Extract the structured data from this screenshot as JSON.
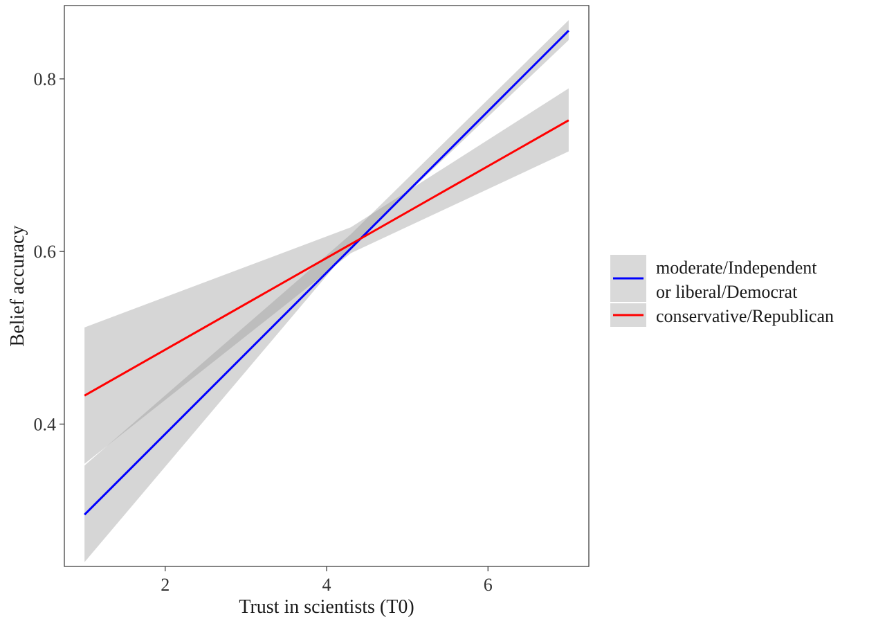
{
  "chart_data": {
    "type": "line",
    "xlabel": "Trust in scientists (T0)",
    "ylabel": "Belief accuracy",
    "xlim": [
      0.75,
      7.25
    ],
    "ylim": [
      0.235,
      0.885
    ],
    "x_ticks": [
      2,
      4,
      6
    ],
    "y_ticks": [
      0.4,
      0.6,
      0.8
    ],
    "x_tick_labels": [
      "2",
      "4",
      "6"
    ],
    "y_tick_labels": [
      "0.4",
      "0.6",
      "0.8"
    ],
    "grid": false,
    "legend_position": "right",
    "series": [
      {
        "name": "moderate/Independent or liberal/Democrat",
        "legend_lines": [
          "moderate/Independent",
          "or liberal/Democrat"
        ],
        "color": "#0000ff",
        "x": [
          1,
          7
        ],
        "y": [
          0.295,
          0.856
        ],
        "ci": {
          "x": [
            1,
            4.3,
            7
          ],
          "lower": [
            0.24,
            0.605,
            0.845
          ],
          "upper": [
            0.352,
            0.62,
            0.868
          ]
        }
      },
      {
        "name": "conservative/Republican",
        "legend_lines": [
          "conservative/Republican"
        ],
        "color": "#ff0000",
        "x": [
          1,
          7
        ],
        "y": [
          0.433,
          0.752
        ],
        "ci": {
          "x": [
            1,
            4.3,
            7
          ],
          "lower": [
            0.354,
            0.598,
            0.716
          ],
          "upper": [
            0.512,
            0.628,
            0.789
          ]
        }
      }
    ]
  }
}
